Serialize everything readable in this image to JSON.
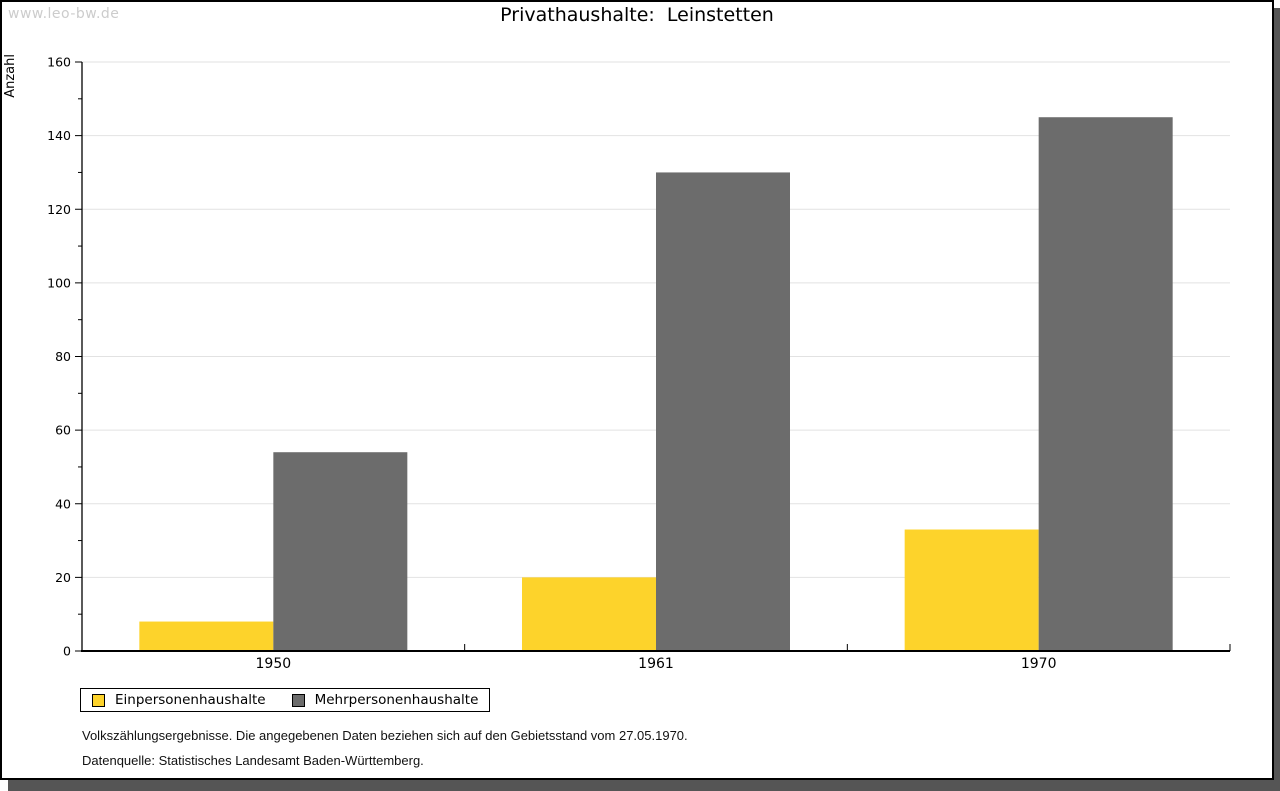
{
  "watermark": "www.leo-bw.de",
  "title": "Privathaushalte:  Leinstetten",
  "chart_data": {
    "type": "bar",
    "title": "Privathaushalte: Leinstetten",
    "categories": [
      "1950",
      "1961",
      "1970"
    ],
    "series": [
      {
        "name": "Einpersonenhaushalte",
        "color": "#FDD32B",
        "values": [
          8,
          20,
          33
        ]
      },
      {
        "name": "Mehrpersonenhaushalte",
        "color": "#6C6C6C",
        "values": [
          54,
          130,
          145
        ]
      }
    ],
    "xlabel": "",
    "ylabel": "Anzahl",
    "ylim": [
      0,
      160
    ],
    "ytick_step": 20,
    "yminor_step": 10,
    "grid": true,
    "gridline_color": "#e2e2e2",
    "legend_position": "bottom-left"
  },
  "legend": {
    "items": [
      {
        "label": "Einpersonenhaushalte"
      },
      {
        "label": "Mehrpersonenhaushalte"
      }
    ]
  },
  "footnotes": [
    "Volkszählungsergebnisse. Die angegebenen Daten beziehen sich auf den Gebietsstand vom 27.05.1970.",
    "Datenquelle: Statistisches Landesamt Baden-Württemberg."
  ],
  "colors": {
    "series1": "#FDD32B",
    "series2": "#6C6C6C",
    "gridline": "#e2e2e2",
    "axis": "#000000",
    "watermark": "#cccccc",
    "frame_shadow": "#555555"
  }
}
